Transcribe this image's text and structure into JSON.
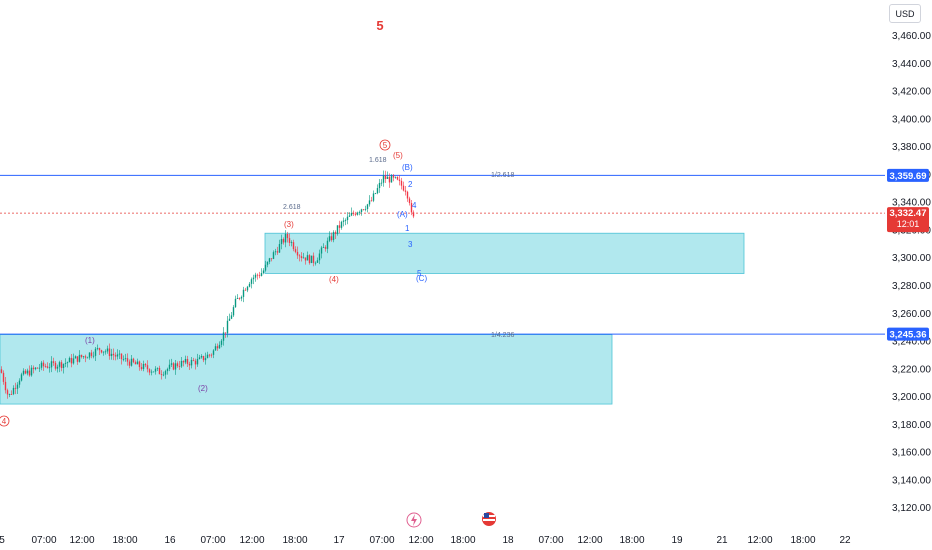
{
  "chart_data": {
    "type": "candlestick",
    "currency": "USD",
    "title_label": "5",
    "y_axis": {
      "ticks": [
        "3,460.00",
        "3,440.00",
        "3,420.00",
        "3,400.00",
        "3,380.00",
        "3,360.00",
        "3,340.00",
        "3,320.00",
        "3,300.00",
        "3,280.00",
        "3,260.00",
        "3,240.00",
        "3,220.00",
        "3,200.00",
        "3,180.00",
        "3,160.00",
        "3,140.00",
        "3,120.00"
      ],
      "ylim": [
        3110,
        3470
      ]
    },
    "x_axis": {
      "ticks": [
        "5",
        "07:00",
        "12:00",
        "18:00",
        "16",
        "07:00",
        "12:00",
        "18:00",
        "17",
        "07:00",
        "12:00",
        "18:00",
        "18",
        "07:00",
        "12:00",
        "18:00",
        "19",
        "21",
        "12:00",
        "18:00",
        "22"
      ]
    },
    "price_labels": {
      "upper_level": "3,359.69",
      "current_price": "3,332.47",
      "countdown": "12:01",
      "lower_level": "3,245.36"
    },
    "zones": [
      {
        "name": "upper-zone",
        "y_top": 3318,
        "y_bottom": 3289
      },
      {
        "name": "lower-zone",
        "y_top": 3245,
        "y_bottom": 3195
      }
    ],
    "fib_labels": [
      "1/2.618",
      "1/4.236",
      "2.618",
      "1.618"
    ],
    "wave_labels": {
      "purple": [
        "(1)",
        "(2)"
      ],
      "red": [
        "(3)",
        "(4)",
        "(5)",
        "5",
        "4"
      ],
      "blue": [
        "(B)",
        "(A)",
        "(C)",
        "1",
        "2",
        "3",
        "4",
        "5"
      ]
    }
  }
}
